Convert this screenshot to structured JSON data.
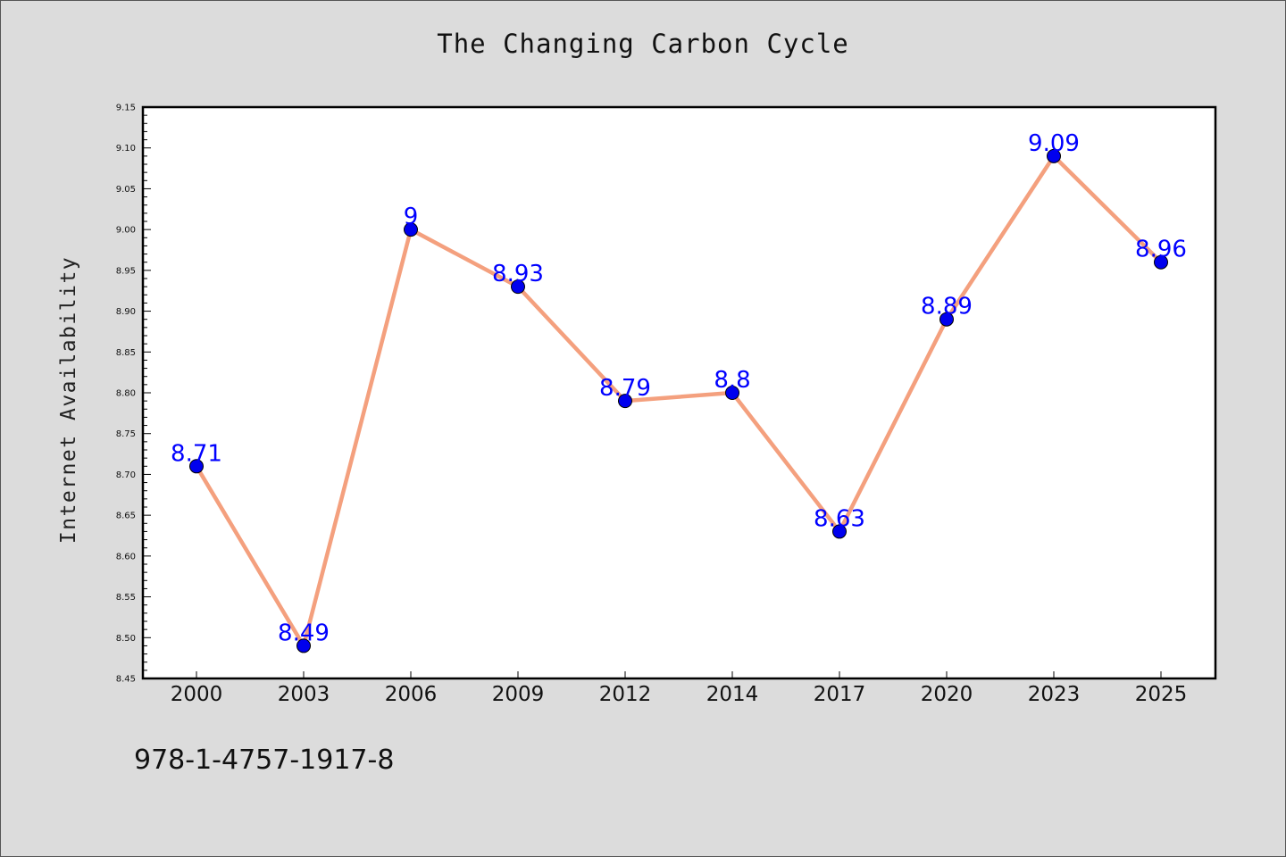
{
  "chart_data": {
    "type": "line",
    "title": "The Changing Carbon Cycle",
    "xlabel": "",
    "ylabel": "Internet Availability",
    "categories": [
      "2000",
      "2003",
      "2006",
      "2009",
      "2012",
      "2014",
      "2017",
      "2020",
      "2023",
      "2025"
    ],
    "values": [
      8.71,
      8.49,
      9.0,
      8.93,
      8.79,
      8.8,
      8.63,
      8.89,
      9.09,
      8.96
    ],
    "data_labels": [
      "8.71",
      "8.49",
      "9",
      "8.93",
      "8.79",
      "8.8",
      "8.63",
      "8.89",
      "9.09",
      "8.96"
    ],
    "ylim": [
      8.45,
      9.15
    ],
    "y_ticks": [
      "8.45",
      "8.50",
      "8.55",
      "8.60",
      "8.65",
      "8.70",
      "8.75",
      "8.80",
      "8.85",
      "8.90",
      "8.95",
      "9.00",
      "9.05",
      "9.10",
      "9.15"
    ],
    "grid": false,
    "legend": "none",
    "colors": {
      "line": "#f4a07e",
      "marker": "#0000ee",
      "data_label": "#0000ff",
      "plot_background": "#ffffff",
      "figure_background": "#dcdcdc"
    }
  },
  "footer": {
    "isbn": "978-1-4757-1917-8"
  }
}
